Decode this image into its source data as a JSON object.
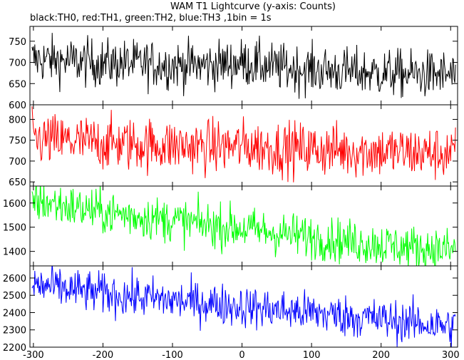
{
  "chart_data": {
    "type": "line",
    "title": "WAM T1 Lightcurve (y-axis: Counts)",
    "subtitle": "black:TH0, red:TH1, green:TH2, blue:TH3 ,1bin = 1s",
    "xlabel": "",
    "ylabel": "",
    "xlim": [
      -305,
      310
    ],
    "x_ticks": [
      -300,
      -200,
      -100,
      0,
      100,
      200,
      300
    ],
    "grid": false,
    "legend": "none",
    "panels": [
      {
        "name": "TH0",
        "color": "#000000",
        "ylim": [
          600,
          785
        ],
        "y_ticks": [
          600,
          650,
          700,
          750
        ],
        "x": [
          -300,
          -250,
          -200,
          -150,
          -100,
          -50,
          0,
          50,
          100,
          150,
          200,
          250,
          300
        ],
        "values": [
          708,
          703,
          698,
          697,
          694,
          693,
          700,
          688,
          683,
          678,
          675,
          672,
          670
        ]
      },
      {
        "name": "TH1",
        "color": "#ff0000",
        "ylim": [
          640,
          835
        ],
        "y_ticks": [
          650,
          700,
          750,
          800
        ],
        "x": [
          -300,
          -250,
          -200,
          -150,
          -100,
          -50,
          0,
          50,
          100,
          150,
          200,
          250,
          300
        ],
        "values": [
          752,
          747,
          743,
          740,
          737,
          734,
          736,
          731,
          728,
          726,
          723,
          720,
          718
        ]
      },
      {
        "name": "TH2",
        "color": "#00ff00",
        "ylim": [
          1340,
          1670
        ],
        "y_ticks": [
          1400,
          1500,
          1600
        ],
        "x": [
          -300,
          -250,
          -200,
          -150,
          -100,
          -50,
          0,
          50,
          100,
          150,
          200,
          250,
          300
        ],
        "values": [
          1612,
          1585,
          1562,
          1545,
          1528,
          1510,
          1495,
          1475,
          1460,
          1442,
          1428,
          1415,
          1405
        ]
      },
      {
        "name": "TH3",
        "color": "#0000ff",
        "ylim": [
          2200,
          2670
        ],
        "y_ticks": [
          2200,
          2300,
          2400,
          2500,
          2600
        ],
        "x": [
          -300,
          -250,
          -200,
          -150,
          -100,
          -50,
          0,
          50,
          100,
          150,
          200,
          250,
          300
        ],
        "values": [
          2560,
          2535,
          2510,
          2490,
          2470,
          2455,
          2435,
          2415,
          2400,
          2380,
          2360,
          2340,
          2320
        ]
      }
    ]
  }
}
